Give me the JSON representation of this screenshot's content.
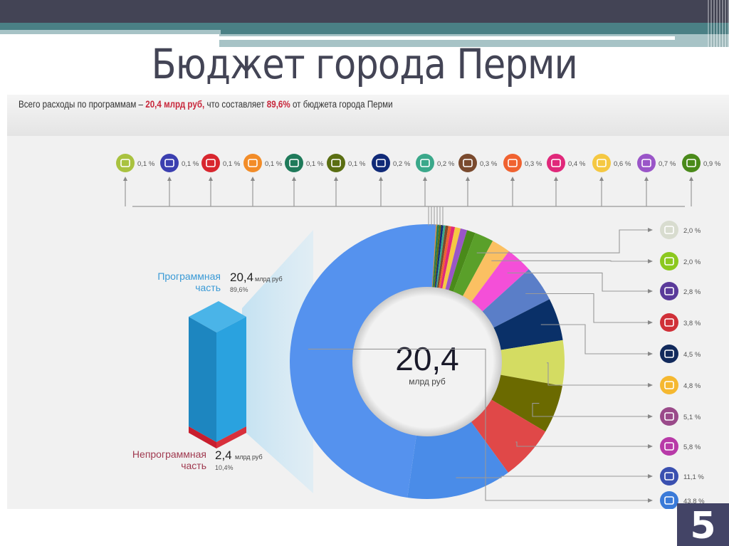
{
  "slide": {
    "title": "Бюджет города Перми",
    "page_number": "5",
    "colors": {
      "dark": "#434455",
      "teal": "#4a8085",
      "accent_red": "#c8283c"
    }
  },
  "header": {
    "prefix": "Всего расходы по программам – ",
    "amount": "20,4 млрд руб,",
    "middle": " что составляет ",
    "percent": "89,6%",
    "suffix": " от бюджета города Перми"
  },
  "left_panel": {
    "program": {
      "label_line1": "Программная",
      "label_line2": "часть",
      "value": "20,4",
      "unit": "млрд руб",
      "percent": "89,6%",
      "color": "#3a9ad6"
    },
    "nonprogram": {
      "label_line1": "Непрограммная",
      "label_line2": "часть",
      "value": "2,4",
      "unit": "млрд руб",
      "percent": "10,4%",
      "color": "#a03a50"
    }
  },
  "center": {
    "value": "20,4",
    "unit": "млрд руб"
  },
  "chart_data": {
    "type": "pie",
    "title": "Бюджет города Перми — расходы по программам",
    "total": "20,4 млрд руб",
    "donut": true,
    "slices": [
      {
        "label": "0,1 %",
        "value": 0.1,
        "icon": "alarm-icon",
        "color": "#a9c23f"
      },
      {
        "label": "0,1 %",
        "value": 0.1,
        "icon": "touchscreen-icon",
        "color": "#3b3fb0"
      },
      {
        "label": "0,1 %",
        "value": 0.1,
        "icon": "chart-hand-icon",
        "color": "#d8262e"
      },
      {
        "label": "0,1 %",
        "value": 0.1,
        "icon": "basket-icon",
        "color": "#f28c28"
      },
      {
        "label": "0,1 %",
        "value": 0.1,
        "icon": "tree-warning-icon",
        "color": "#1f7a5a"
      },
      {
        "label": "0,1 %",
        "value": 0.1,
        "icon": "thumbs-up-icon",
        "color": "#5a6e12"
      },
      {
        "label": "0,2 %",
        "value": 0.2,
        "icon": "people-icon",
        "color": "#102a78"
      },
      {
        "label": "0,2 %",
        "value": 0.2,
        "icon": "leaf-icon",
        "color": "#3aa88a"
      },
      {
        "label": "0,3 %",
        "value": 0.3,
        "icon": "keyboard-icon",
        "color": "#7a4a2e"
      },
      {
        "label": "0,3 %",
        "value": 0.3,
        "icon": "signpost-icon",
        "color": "#f06230"
      },
      {
        "label": "0,4 %",
        "value": 0.4,
        "icon": "checkbox-icon",
        "color": "#e0287a"
      },
      {
        "label": "0,6 %",
        "value": 0.6,
        "icon": "shield-icon",
        "color": "#f5c842"
      },
      {
        "label": "0,7 %",
        "value": 0.7,
        "icon": "paint-roller-icon",
        "color": "#9a55c8"
      },
      {
        "label": "0,9 %",
        "value": 0.9,
        "icon": "baby-icon",
        "color": "#4a8a1a"
      },
      {
        "label": "2,0 %",
        "value": 2.0,
        "icon": "bar-chart-icon",
        "color": "#5aa02a"
      },
      {
        "label": "2,0 %",
        "value": 2.0,
        "icon": "building-tree-icon",
        "color": "#fbc062"
      },
      {
        "label": "2,8 %",
        "value": 2.8,
        "icon": "faucet-icon",
        "color": "#f44fd8"
      },
      {
        "label": "3,8 %",
        "value": 3.8,
        "icon": "runner-icon",
        "color": "#5a7ec8"
      },
      {
        "label": "4,5 %",
        "value": 4.5,
        "icon": "theater-masks-icon",
        "color": "#0a3068"
      },
      {
        "label": "4,8 %",
        "value": 4.8,
        "icon": "tram-icon",
        "color": "#d4dc62"
      },
      {
        "label": "5,1 %",
        "value": 5.1,
        "icon": "factory-icon",
        "color": "#6b6a00"
      },
      {
        "label": "5,8 %",
        "value": 5.8,
        "icon": "traffic-light-icon",
        "color": "#e04848"
      },
      {
        "label": "11,1 %",
        "value": 11.1,
        "icon": "road-works-icon",
        "color": "#4a8ce8"
      },
      {
        "label": "43,8 %",
        "value": 43.8,
        "icon": "book-icon",
        "color": "#4a8ce8"
      }
    ],
    "top_legend": [
      "0,1 %",
      "0,1 %",
      "0,1 %",
      "0,1 %",
      "0,1 %",
      "0,1 %",
      "0,2 %",
      "0,2 %",
      "0,3 %",
      "0,3 %",
      "0,4 %",
      "0,6 %",
      "0,7 %",
      "0,9 %"
    ],
    "right_legend": [
      {
        "label": "2,0 %",
        "icon_color": "#d8dccf"
      },
      {
        "label": "2,0 %",
        "icon_color": "#8cc81e"
      },
      {
        "label": "2,8 %",
        "icon_color": "#5a3a9a"
      },
      {
        "label": "3,8 %",
        "icon_color": "#d03038"
      },
      {
        "label": "4,5 %",
        "icon_color": "#122a5c"
      },
      {
        "label": "4,8 %",
        "icon_color": "#f5b830"
      },
      {
        "label": "5,1 %",
        "icon_color": "#9a4a8a"
      },
      {
        "label": "5,8 %",
        "icon_color": "#b83aa8"
      },
      {
        "label": "11,1 %",
        "icon_color": "#3a50b0"
      },
      {
        "label": "43,8 %",
        "icon_color": "#3a7ad8"
      }
    ],
    "bar": {
      "program_percent": 89.6,
      "nonprogram_percent": 10.4
    }
  }
}
